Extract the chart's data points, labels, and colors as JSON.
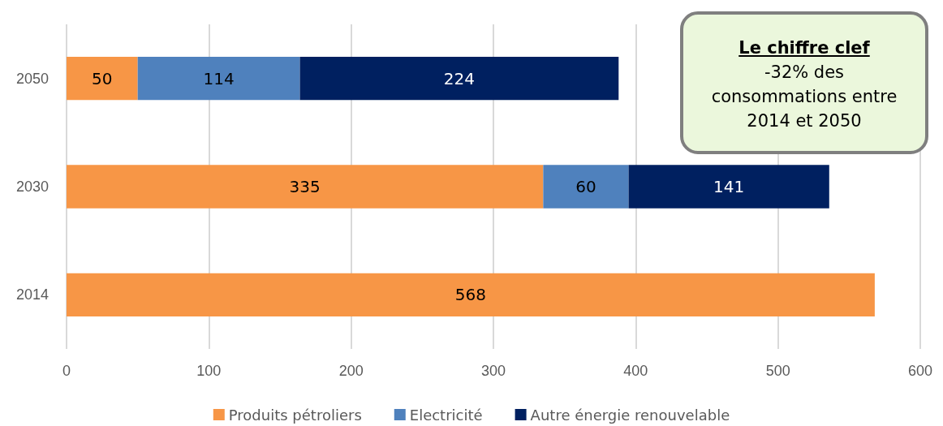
{
  "chart_data": {
    "type": "bar",
    "orientation": "horizontal",
    "stacked": true,
    "categories": [
      "2050",
      "2030",
      "2014"
    ],
    "series": [
      {
        "name": "Produits pétroliers",
        "color": "#f79646",
        "values": [
          50,
          335,
          568
        ]
      },
      {
        "name": "Electricité",
        "color": "#4f81bd",
        "values": [
          114,
          60,
          null
        ]
      },
      {
        "name": "Autre énergie renouvelable",
        "color": "#002060",
        "values": [
          224,
          141,
          null
        ]
      }
    ],
    "xlim": [
      0,
      600
    ],
    "xticks": [
      0,
      100,
      200,
      300,
      400,
      500,
      600
    ],
    "grid": "x",
    "legend": "bottom",
    "data_labels": true,
    "annotations": [
      "Le chiffre clef",
      "-32% des consommations entre 2014 et 2050"
    ]
  }
}
